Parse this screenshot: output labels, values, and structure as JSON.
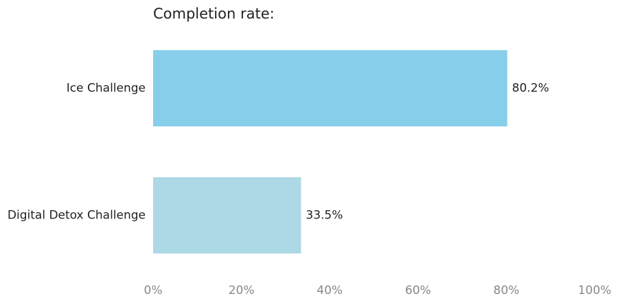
{
  "chart_data": {
    "type": "hbar",
    "title": "Completion rate:",
    "categories": [
      "Ice Challenge",
      "Digital Detox Challenge"
    ],
    "values": [
      80.2,
      33.5
    ],
    "value_labels": [
      "80.2%",
      "33.5%"
    ],
    "colors": [
      "#87ceeb",
      "#add8e6"
    ],
    "xlim": [
      0,
      100
    ],
    "xticks": [
      {
        "value": 0,
        "label": "0%"
      },
      {
        "value": 20,
        "label": "20%"
      },
      {
        "value": 40,
        "label": "40%"
      },
      {
        "value": 60,
        "label": "60%"
      },
      {
        "value": 80,
        "label": "80%"
      },
      {
        "value": 100,
        "label": "100%"
      }
    ],
    "grid": false
  }
}
